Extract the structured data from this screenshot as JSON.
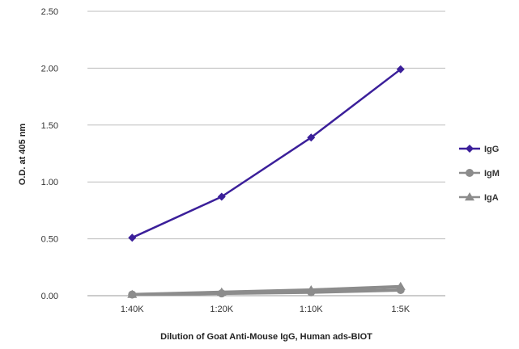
{
  "chart_data": {
    "type": "line",
    "xlabel": "Dilution of Goat Anti-Mouse IgG, Human ads-BIOT",
    "ylabel": "O.D. at 405 nm",
    "categories": [
      "1:40K",
      "1:20K",
      "1:10K",
      "1:5K"
    ],
    "ylim": [
      0,
      2.5
    ],
    "yticks": [
      "0.00",
      "0.50",
      "1.00",
      "1.50",
      "2.00",
      "2.50"
    ],
    "grid": true,
    "legend_position": "right",
    "series": [
      {
        "name": "IgG",
        "values": [
          0.51,
          0.87,
          1.39,
          1.99
        ],
        "color": "#3b1f9a",
        "marker": "diamond"
      },
      {
        "name": "IgM",
        "values": [
          0.01,
          0.02,
          0.03,
          0.05
        ],
        "color": "#8c8c8c",
        "marker": "circle"
      },
      {
        "name": "IgA",
        "values": [
          0.01,
          0.03,
          0.05,
          0.08
        ],
        "color": "#8c8c8c",
        "marker": "triangle"
      }
    ]
  }
}
